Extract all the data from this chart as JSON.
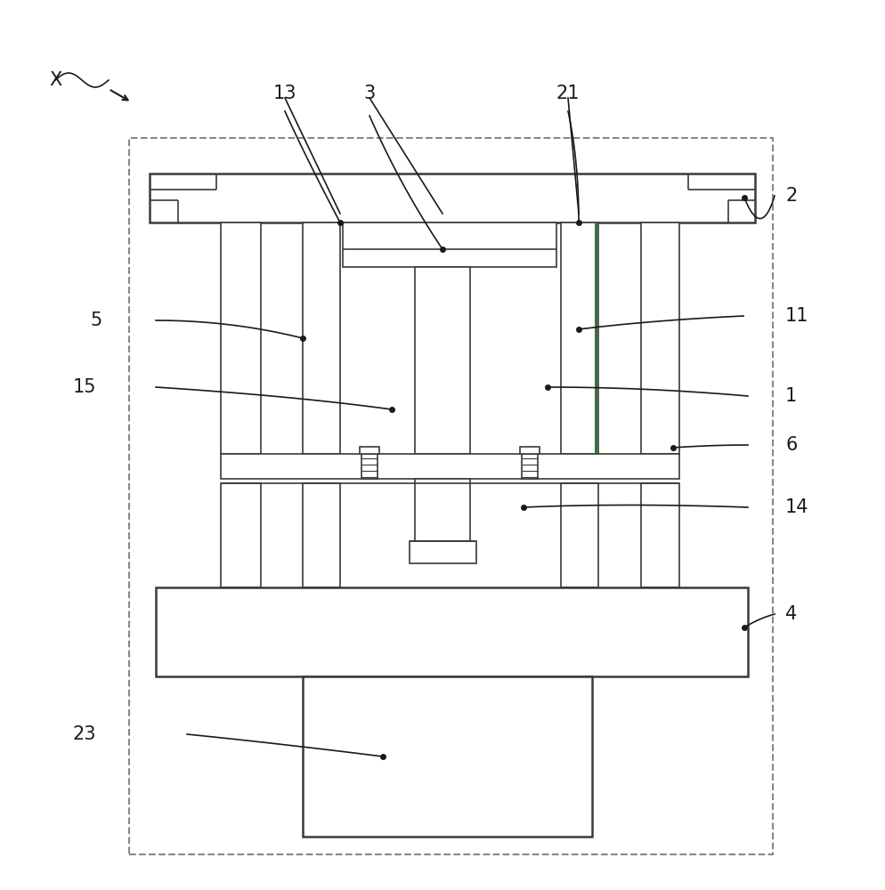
{
  "bg_color": "#ffffff",
  "line_color": "#3a3a3a",
  "dashed_color": "#888888",
  "fig_width": 9.94,
  "fig_height": 10.0,
  "dpi": 100
}
